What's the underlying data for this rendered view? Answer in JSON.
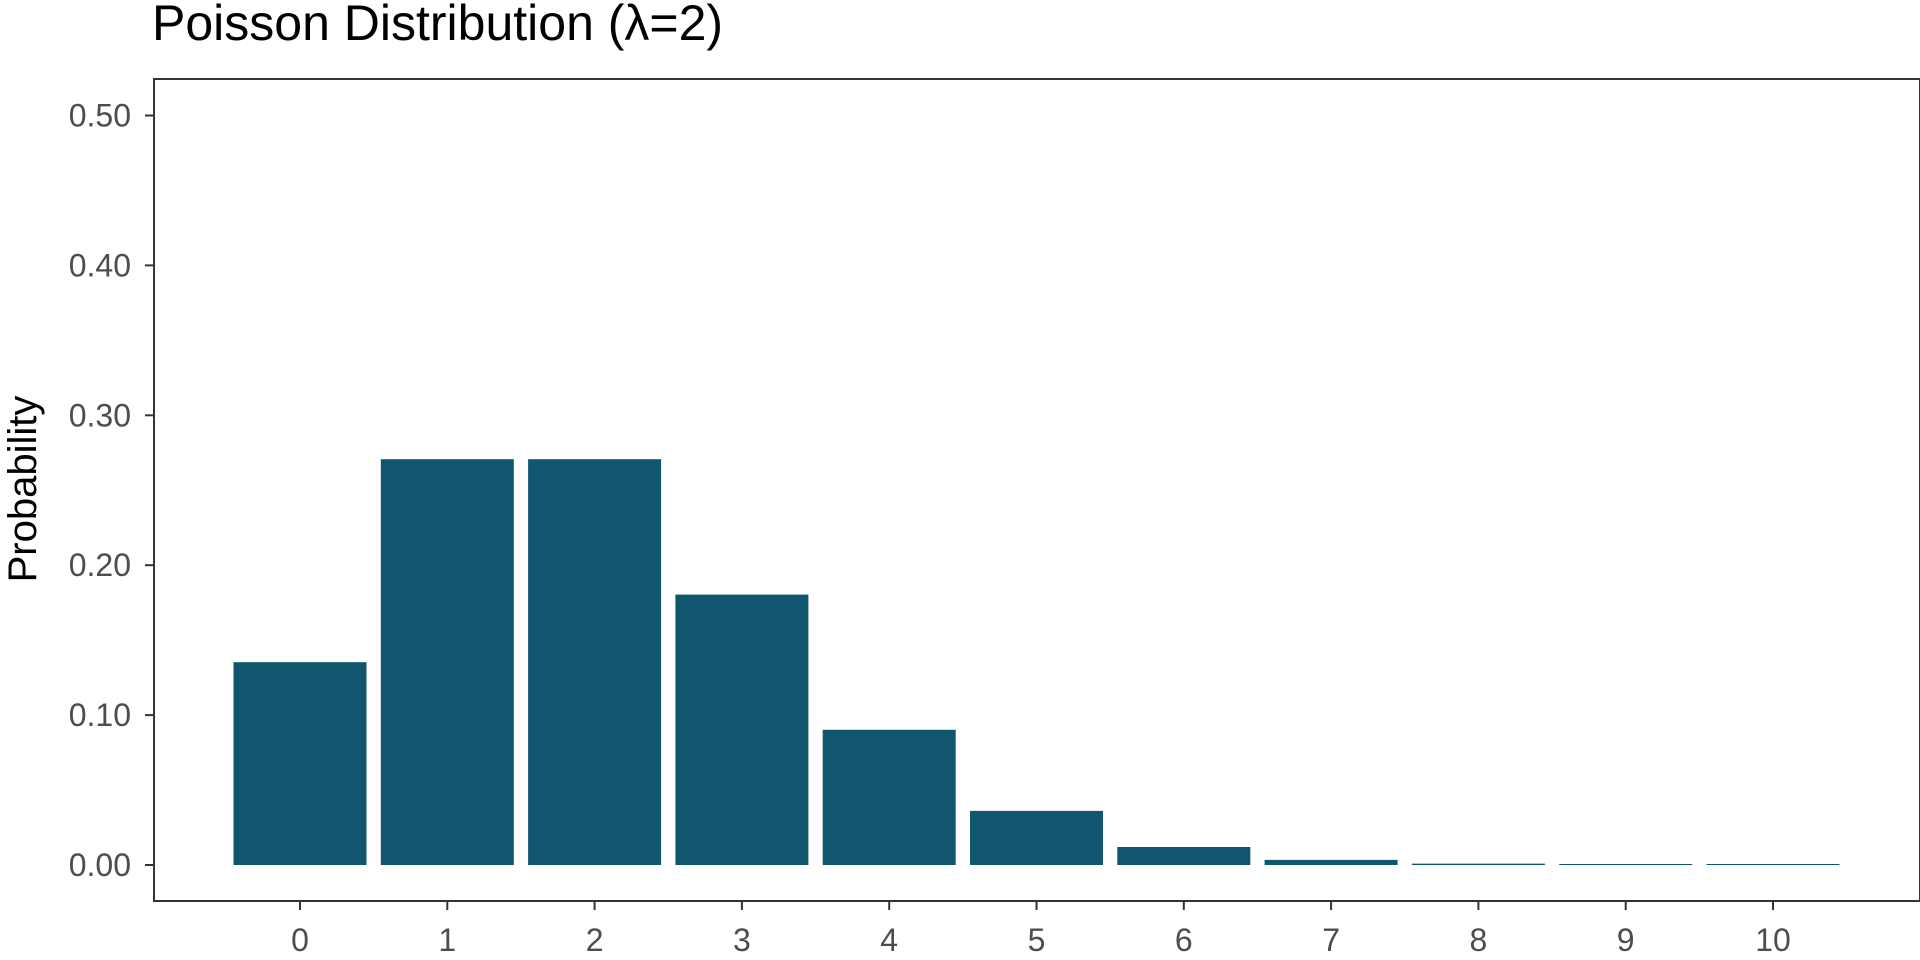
{
  "chart_data": {
    "type": "bar",
    "title": "Poisson Distribution (λ=2)",
    "xlabel": "",
    "ylabel": "Probability",
    "categories": [
      "0",
      "1",
      "2",
      "3",
      "4",
      "5",
      "6",
      "7",
      "8",
      "9",
      "10"
    ],
    "values": [
      0.1353,
      0.2707,
      0.2707,
      0.1804,
      0.0902,
      0.0361,
      0.012,
      0.0034,
      0.0009,
      0.0002,
      4e-05
    ],
    "ylim": [
      -0.0245,
      0.525
    ],
    "yticks": [
      0,
      0.1,
      0.2,
      0.3,
      0.4,
      0.5
    ],
    "ytick_labels": [
      "0.00",
      "0.10",
      "0.20",
      "0.30",
      "0.40",
      "0.50"
    ],
    "grid": false,
    "legend": "none",
    "colors": {
      "bar": "#0f566e",
      "panel_border": "#333333",
      "tick_text": "#4d4d4d",
      "title_text": "#000000"
    }
  }
}
